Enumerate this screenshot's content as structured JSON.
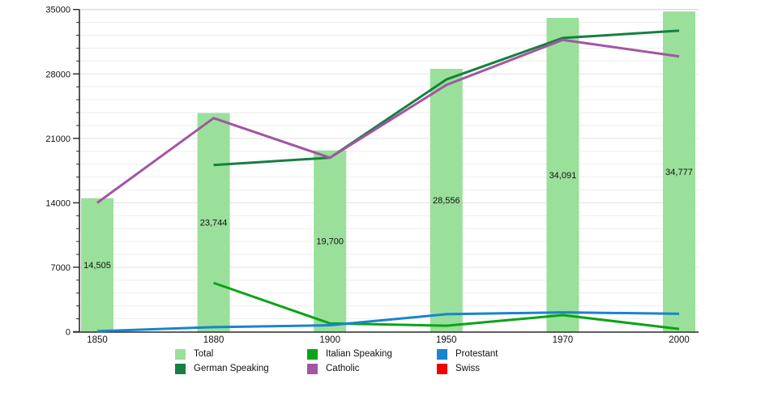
{
  "chart_data": {
    "type": "bar",
    "combo_types": [
      "bar",
      "line"
    ],
    "title": "",
    "xlabel": "",
    "ylabel": "",
    "categories": [
      "1850",
      "1880",
      "1900",
      "1950",
      "1970",
      "2000"
    ],
    "bar_series": {
      "name": "Total",
      "color": "#9ae09a",
      "values": [
        14505,
        23744,
        19700,
        28556,
        34091,
        34777
      ],
      "labels": [
        "14,505",
        "23,744",
        "19,700",
        "28,556",
        "34,091",
        "34,777"
      ]
    },
    "line_series": [
      {
        "name": "Italian Speaking",
        "color": "#0aa416",
        "values": [
          null,
          5300,
          900,
          650,
          1800,
          300
        ]
      },
      {
        "name": "German Speaking",
        "color": "#168041",
        "values": [
          null,
          18100,
          18900,
          27400,
          31900,
          32700
        ]
      },
      {
        "name": "Catholic",
        "color": "#a355a3",
        "values": [
          14000,
          23200,
          18900,
          26800,
          31700,
          29900
        ]
      },
      {
        "name": "Protestant",
        "color": "#1a84ce",
        "values": [
          50,
          500,
          700,
          1900,
          2100,
          1950
        ]
      },
      {
        "name": "Swiss",
        "color": "#f20000",
        "values": null,
        "note": "legend entry only; no line visible in plot"
      }
    ],
    "ylim": [
      0,
      35000
    ],
    "y_ticks": [
      "0",
      "7000",
      "14000",
      "21000",
      "28000",
      "35000"
    ],
    "y_tick_values": [
      0,
      7000,
      14000,
      21000,
      28000,
      35000
    ],
    "y_minor_step": 1400,
    "grid": "horizontal",
    "legend_position": "bottom",
    "legend": [
      {
        "label": "Total",
        "color": "#9ae09a"
      },
      {
        "label": "Italian Speaking",
        "color": "#0aa416"
      },
      {
        "label": "Protestant",
        "color": "#1a84ce"
      },
      {
        "label": "German Speaking",
        "color": "#168041"
      },
      {
        "label": "Catholic",
        "color": "#a355a3"
      },
      {
        "label": "Swiss",
        "color": "#f20000"
      }
    ],
    "colors": {
      "axis": "#2a2a2a",
      "grid_minor": "#ededed",
      "grid_major": "#e0e0e0",
      "grid_top": "#c9cdd9",
      "text": "#111111",
      "background": "#ffffff"
    }
  }
}
